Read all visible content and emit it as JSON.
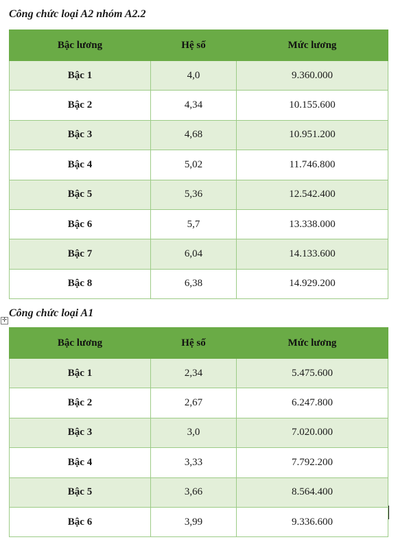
{
  "sections": [
    {
      "title": "Công chức loại A2 nhóm A2.2",
      "headers": [
        "Bậc lương",
        "Hệ số",
        "Mức lương"
      ],
      "rows": [
        [
          "Bậc 1",
          "4,0",
          "9.360.000"
        ],
        [
          "Bậc 2",
          "4,34",
          "10.155.600"
        ],
        [
          "Bậc 3",
          "4,68",
          "10.951.200"
        ],
        [
          "Bậc 4",
          "5,02",
          "11.746.800"
        ],
        [
          "Bậc 5",
          "5,36",
          "12.542.400"
        ],
        [
          "Bậc 6",
          "5,7",
          "13.338.000"
        ],
        [
          "Bậc 7",
          "6,04",
          "14.133.600"
        ],
        [
          "Bậc 8",
          "6,38",
          "14.929.200"
        ]
      ]
    },
    {
      "title": "Công chức loại A1",
      "headers": [
        "Bậc lương",
        "Hệ số",
        "Mức lương"
      ],
      "rows": [
        [
          "Bậc 1",
          "2,34",
          "5.475.600"
        ],
        [
          "Bậc 2",
          "2,67",
          "6.247.800"
        ],
        [
          "Bậc 3",
          "3,0",
          "7.020.000"
        ],
        [
          "Bậc 4",
          "3,33",
          "7.792.200"
        ],
        [
          "Bậc 5",
          "3,66",
          "8.564.400"
        ],
        [
          "Bậc 6",
          "3,99",
          "9.336.600"
        ]
      ]
    }
  ],
  "colors": {
    "header_fill": "#6aab46",
    "band_fill": "#e3efd9",
    "border": "#9ccb86"
  },
  "icons": {
    "table_move_handle": "move-arrows-icon"
  }
}
